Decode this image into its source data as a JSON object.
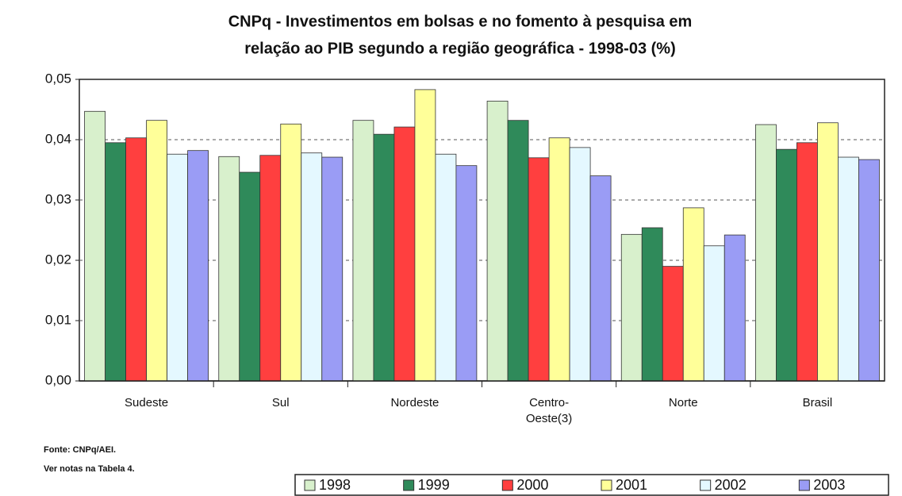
{
  "chart_data": {
    "type": "bar",
    "title": "CNPq - Investimentos em bolsas e no fomento à pesquisa em",
    "subtitle": "relação ao PIB segundo a região geográfica - 1998-03 (%)",
    "categories": [
      "Sudeste",
      "Sul",
      "Nordeste",
      "Centro-Oeste(3)",
      "Norte",
      "Brasil"
    ],
    "series": [
      {
        "name": "1998",
        "color": "#d8f0cc",
        "values": [
          0.0447,
          0.0372,
          0.0432,
          0.0464,
          0.0243,
          0.0425
        ]
      },
      {
        "name": "1999",
        "color": "#2f8a5a",
        "values": [
          0.0395,
          0.0346,
          0.0409,
          0.0432,
          0.0254,
          0.0384
        ]
      },
      {
        "name": "2000",
        "color": "#ff3f3f",
        "values": [
          0.0403,
          0.0374,
          0.0421,
          0.037,
          0.019,
          0.0395
        ]
      },
      {
        "name": "2001",
        "color": "#ffff99",
        "values": [
          0.0432,
          0.0426,
          0.0483,
          0.0403,
          0.0287,
          0.0428
        ]
      },
      {
        "name": "2002",
        "color": "#e4f8ff",
        "values": [
          0.0376,
          0.0378,
          0.0376,
          0.0387,
          0.0224,
          0.0371
        ]
      },
      {
        "name": "2003",
        "color": "#9a9cf5",
        "values": [
          0.0382,
          0.0371,
          0.0357,
          0.034,
          0.0242,
          0.0367
        ]
      }
    ],
    "ylim": [
      0,
      0.05
    ],
    "yticks": [
      {
        "value": 0,
        "label": "0,00"
      },
      {
        "value": 0.01,
        "label": "0,01"
      },
      {
        "value": 0.02,
        "label": "0,02"
      },
      {
        "value": 0.03,
        "label": "0,03"
      },
      {
        "value": 0.04,
        "label": "0,04"
      },
      {
        "value": 0.05,
        "label": "0,05"
      }
    ],
    "grid": true,
    "legend": "bottom",
    "notes": [
      "Fonte: CNPq/AEI.",
      "Ver notas na Tabela 4."
    ]
  }
}
